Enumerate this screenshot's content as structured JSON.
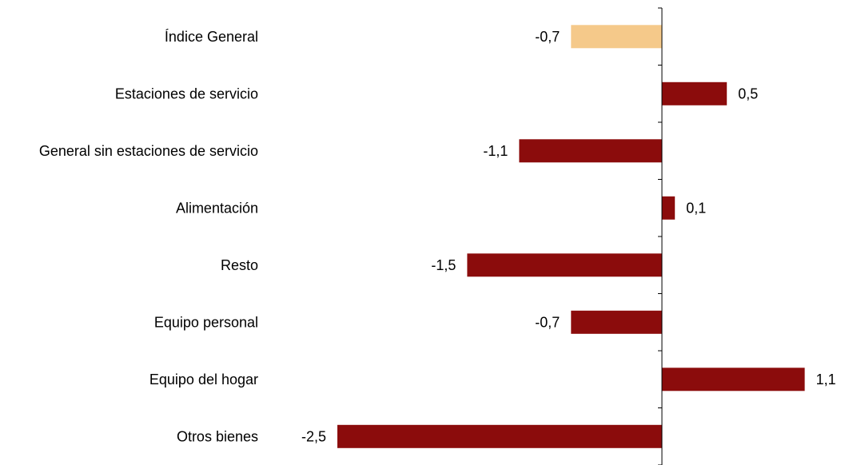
{
  "chart_data": {
    "type": "bar",
    "orientation": "horizontal",
    "title": "",
    "xlabel": "",
    "ylabel": "",
    "xlim": [
      -2.5,
      1.1
    ],
    "grid": false,
    "legend": "none",
    "categories": [
      "Índice General",
      "Estaciones de servicio",
      "General sin estaciones de servicio",
      "Alimentación",
      "Resto",
      "Equipo personal",
      "Equipo del hogar",
      "Otros bienes"
    ],
    "values": [
      -0.7,
      0.5,
      -1.1,
      0.1,
      -1.5,
      -0.7,
      1.1,
      -2.5
    ],
    "value_labels": [
      "-0,7",
      "0,5",
      "-1,1",
      "0,1",
      "-1,5",
      "-0,7",
      "1,1",
      "-2,5"
    ],
    "highlight_index": 0,
    "colors": {
      "bar": "#8b0c0c",
      "highlight": "#f5c98a",
      "axis": "#000000",
      "text": "#000000"
    }
  }
}
